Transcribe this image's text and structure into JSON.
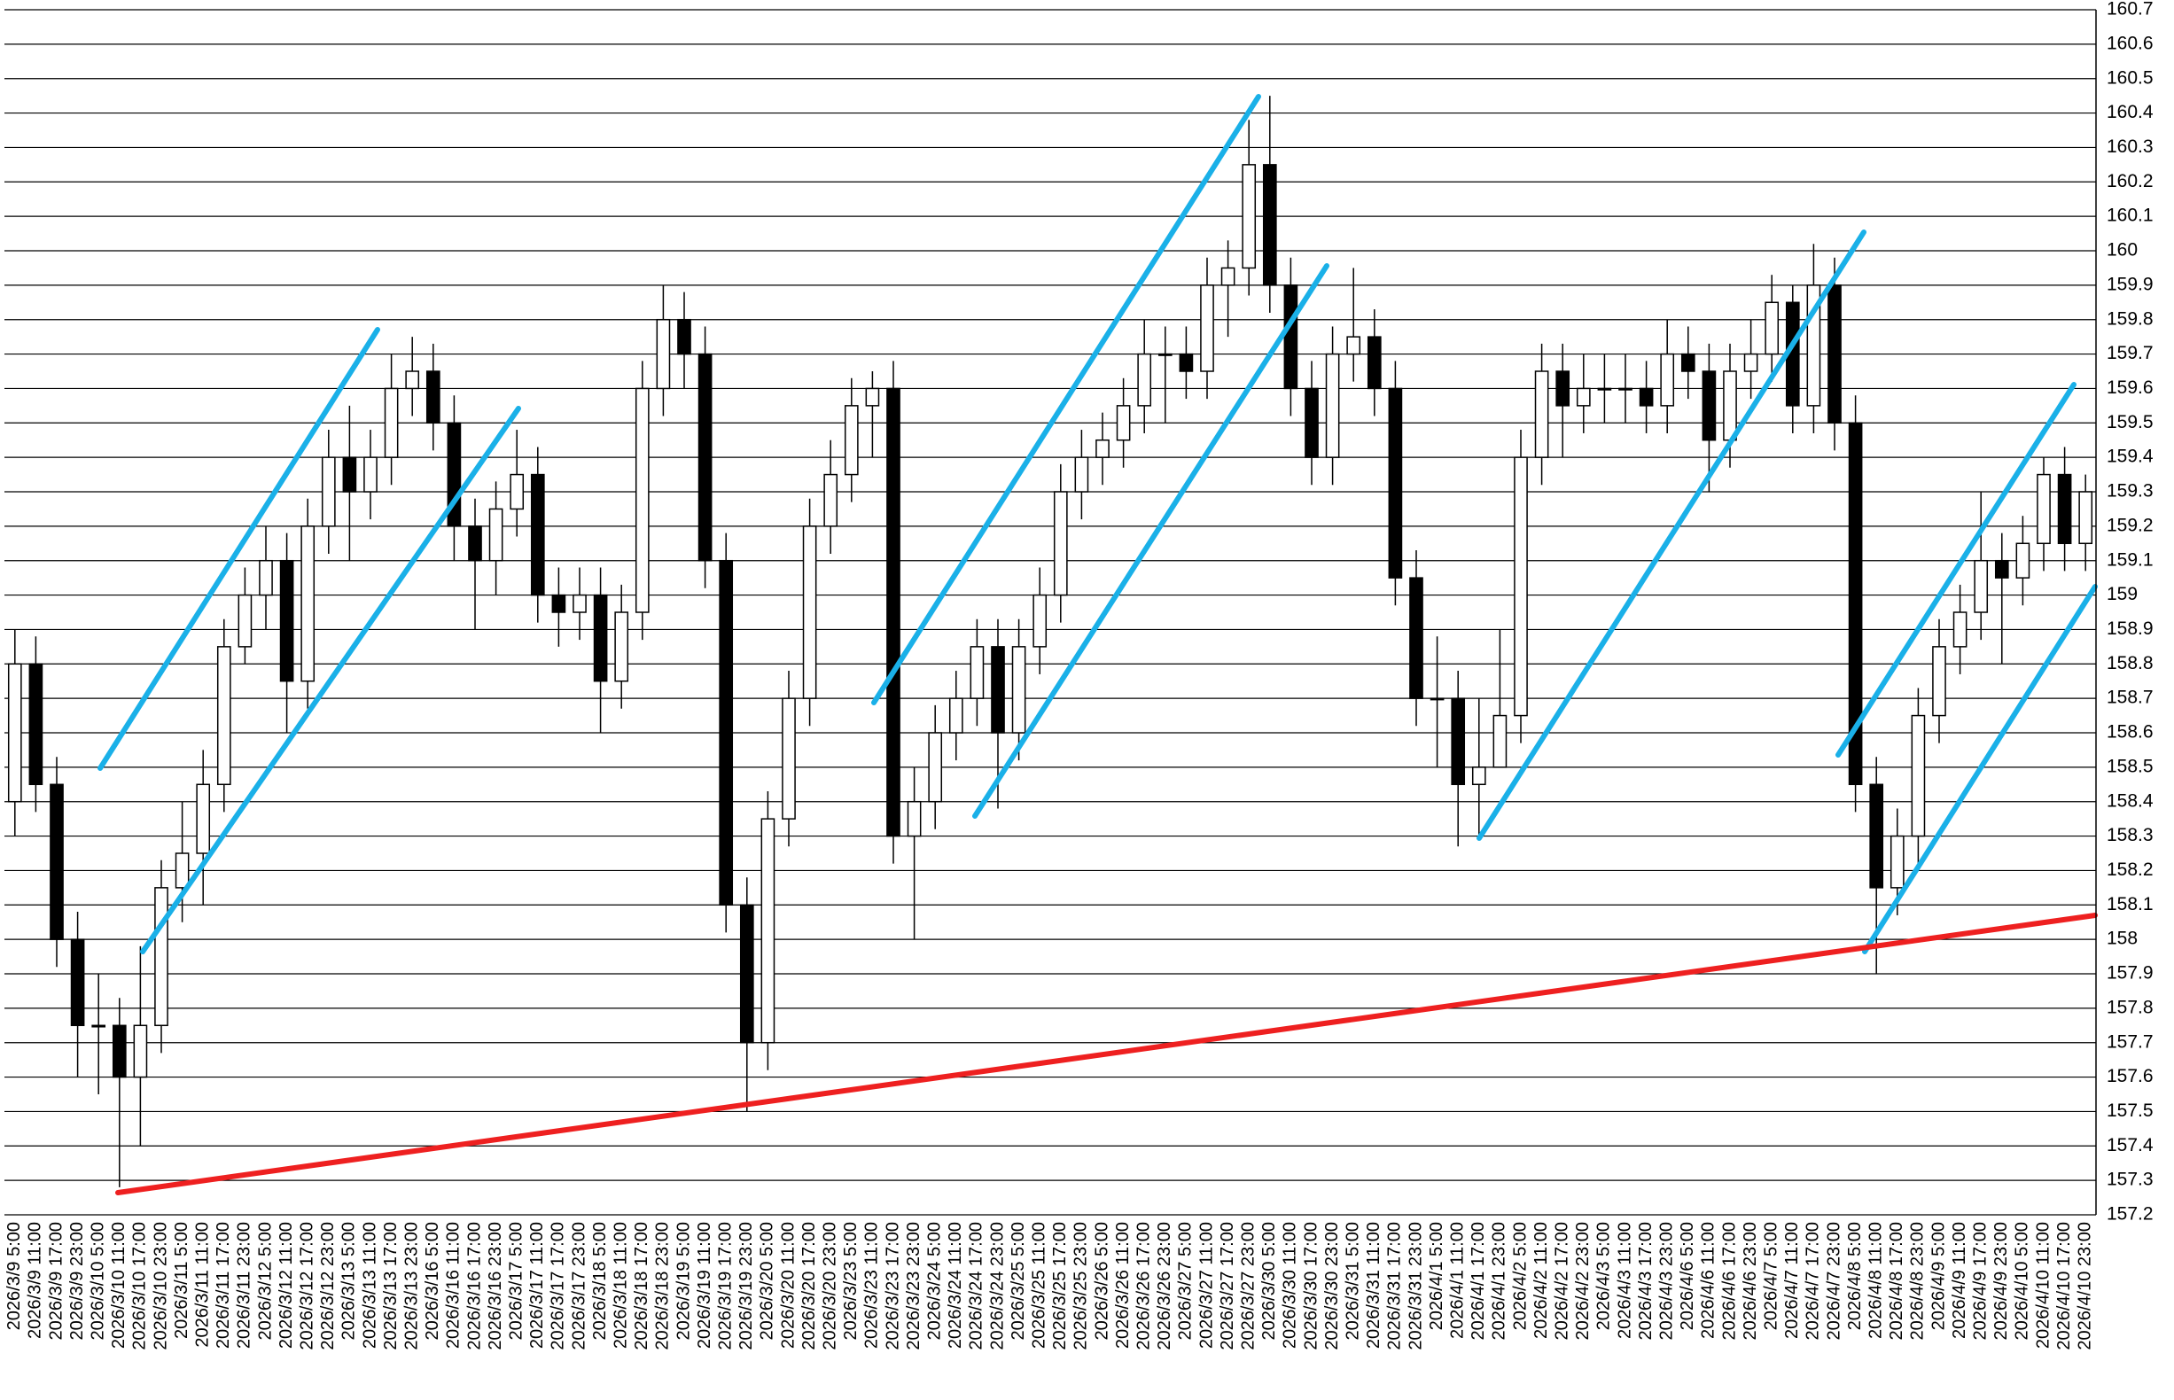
{
  "chart_data": {
    "type": "candlestick",
    "categories": [
      "2026/3/9 5:00",
      "2026/3/9 11:00",
      "2026/3/9 17:00",
      "2026/3/9 23:00",
      "2026/3/10 5:00",
      "2026/3/10 11:00",
      "2026/3/10 17:00",
      "2026/3/10 23:00",
      "2026/3/11 5:00",
      "2026/3/11 11:00",
      "2026/3/11 17:00",
      "2026/3/11 23:00",
      "2026/3/12 5:00",
      "2026/3/12 11:00",
      "2026/3/12 17:00",
      "2026/3/12 23:00",
      "2026/3/13 5:00",
      "2026/3/13 11:00",
      "2026/3/13 17:00",
      "2026/3/13 23:00",
      "2026/3/16 5:00",
      "2026/3/16 11:00",
      "2026/3/16 17:00",
      "2026/3/16 23:00",
      "2026/3/17 5:00",
      "2026/3/17 11:00",
      "2026/3/17 17:00",
      "2026/3/17 23:00",
      "2026/3/18 5:00",
      "2026/3/18 11:00",
      "2026/3/18 17:00",
      "2026/3/18 23:00",
      "2026/3/19 5:00",
      "2026/3/19 11:00",
      "2026/3/19 17:00",
      "2026/3/19 23:00",
      "2026/3/20 5:00",
      "2026/3/20 11:00",
      "2026/3/20 17:00",
      "2026/3/20 23:00",
      "2026/3/23 5:00",
      "2026/3/23 11:00",
      "2026/3/23 17:00",
      "2026/3/23 23:00",
      "2026/3/24 5:00",
      "2026/3/24 11:00",
      "2026/3/24 17:00",
      "2026/3/24 23:00",
      "2026/3/25 5:00",
      "2026/3/25 11:00",
      "2026/3/25 17:00",
      "2026/3/25 23:00",
      "2026/3/26 5:00",
      "2026/3/26 11:00",
      "2026/3/26 17:00",
      "2026/3/26 23:00",
      "2026/3/27 5:00",
      "2026/3/27 11:00",
      "2026/3/27 17:00",
      "2026/3/27 23:00",
      "2026/3/30 5:00",
      "2026/3/30 11:00",
      "2026/3/30 17:00",
      "2026/3/30 23:00",
      "2026/3/31 5:00",
      "2026/3/31 11:00",
      "2026/3/31 17:00",
      "2026/3/31 23:00",
      "2026/4/1 5:00",
      "2026/4/1 11:00",
      "2026/4/1 17:00",
      "2026/4/1 23:00",
      "2026/4/2 5:00",
      "2026/4/2 11:00",
      "2026/4/2 17:00",
      "2026/4/2 23:00",
      "2026/4/3 5:00",
      "2026/4/3 11:00",
      "2026/4/3 17:00",
      "2026/4/3 23:00",
      "2026/4/6 5:00",
      "2026/4/6 11:00",
      "2026/4/6 17:00",
      "2026/4/6 23:00",
      "2026/4/7 5:00",
      "2026/4/7 11:00",
      "2026/4/7 17:00",
      "2026/4/7 23:00",
      "2026/4/8 5:00",
      "2026/4/8 11:00",
      "2026/4/8 17:00",
      "2026/4/8 23:00",
      "2026/4/9 5:00",
      "2026/4/9 11:00",
      "2026/4/9 17:00",
      "2026/4/9 23:00",
      "2026/4/10 5:00",
      "2026/4/10 11:00",
      "2026/4/10 17:00",
      "2026/4/10 23:00"
    ],
    "open": [
      158.4,
      158.8,
      158.45,
      158.0,
      157.75,
      157.75,
      157.6,
      157.75,
      158.15,
      158.25,
      158.45,
      158.85,
      159.0,
      159.1,
      158.75,
      159.2,
      159.4,
      159.3,
      159.4,
      159.6,
      159.65,
      159.5,
      159.2,
      159.1,
      159.25,
      159.35,
      159.0,
      158.95,
      159.0,
      158.75,
      158.95,
      159.6,
      159.8,
      159.7,
      159.1,
      158.1,
      157.7,
      158.35,
      158.7,
      159.2,
      159.35,
      159.55,
      159.6,
      158.3,
      158.4,
      158.6,
      158.7,
      158.85,
      158.6,
      158.85,
      159.0,
      159.3,
      159.4,
      159.45,
      159.55,
      159.7,
      159.7,
      159.65,
      159.9,
      159.95,
      160.25,
      159.9,
      159.6,
      159.4,
      159.7,
      159.75,
      159.6,
      159.05,
      158.7,
      158.7,
      158.45,
      158.5,
      158.65,
      159.4,
      159.65,
      159.55,
      159.6,
      159.6,
      159.6,
      159.55,
      159.7,
      159.65,
      159.45,
      159.65,
      159.7,
      159.85,
      159.55,
      159.9,
      159.5,
      158.45,
      158.15,
      158.3,
      158.65,
      158.85,
      158.95,
      159.1,
      159.05,
      159.15,
      159.35,
      159.15
    ],
    "high": [
      158.9,
      158.88,
      158.53,
      158.08,
      157.9,
      157.83,
      157.98,
      158.23,
      158.4,
      158.55,
      158.93,
      159.08,
      159.2,
      159.18,
      159.28,
      159.48,
      159.55,
      159.48,
      159.7,
      159.75,
      159.73,
      159.58,
      159.28,
      159.33,
      159.48,
      159.43,
      159.08,
      159.08,
      159.08,
      159.03,
      159.68,
      159.9,
      159.88,
      159.78,
      159.18,
      158.18,
      158.43,
      158.78,
      159.28,
      159.45,
      159.63,
      159.65,
      159.68,
      158.5,
      158.68,
      158.78,
      158.93,
      158.93,
      158.93,
      159.08,
      159.38,
      159.48,
      159.53,
      159.63,
      159.8,
      159.78,
      159.78,
      159.98,
      160.03,
      160.38,
      160.45,
      159.98,
      159.68,
      159.78,
      159.95,
      159.83,
      159.68,
      159.13,
      158.88,
      158.78,
      158.7,
      158.9,
      159.48,
      159.73,
      159.73,
      159.7,
      159.7,
      159.7,
      159.68,
      159.8,
      159.78,
      159.73,
      159.73,
      159.8,
      159.93,
      159.9,
      160.02,
      159.98,
      159.58,
      158.53,
      158.38,
      158.73,
      158.93,
      159.03,
      159.3,
      159.18,
      159.23,
      159.4,
      159.43,
      159.35
    ],
    "low": [
      158.3,
      158.37,
      157.92,
      157.6,
      157.55,
      157.28,
      157.4,
      157.67,
      158.05,
      158.1,
      158.37,
      158.8,
      158.9,
      158.6,
      158.67,
      159.12,
      159.1,
      159.22,
      159.32,
      159.52,
      159.42,
      159.1,
      158.9,
      159.0,
      159.17,
      158.92,
      158.85,
      158.87,
      158.6,
      158.67,
      158.87,
      159.52,
      159.6,
      159.02,
      158.02,
      157.5,
      157.62,
      158.27,
      158.62,
      159.12,
      159.27,
      159.4,
      158.22,
      158.0,
      158.32,
      158.52,
      158.62,
      158.38,
      158.52,
      158.77,
      158.92,
      159.22,
      159.32,
      159.37,
      159.47,
      159.5,
      159.57,
      159.57,
      159.75,
      159.87,
      159.82,
      159.52,
      159.32,
      159.32,
      159.62,
      159.52,
      158.97,
      158.62,
      158.5,
      158.27,
      158.3,
      158.5,
      158.57,
      159.32,
      159.4,
      159.47,
      159.5,
      159.5,
      159.47,
      159.47,
      159.57,
      159.3,
      159.37,
      159.57,
      159.62,
      159.47,
      159.47,
      159.42,
      158.37,
      157.9,
      158.07,
      158.22,
      158.57,
      158.77,
      158.87,
      158.8,
      158.97,
      159.07,
      159.07,
      159.07
    ],
    "close": [
      158.8,
      158.45,
      158.0,
      157.75,
      157.75,
      157.6,
      157.75,
      158.15,
      158.25,
      158.45,
      158.85,
      159.0,
      159.1,
      158.75,
      159.2,
      159.4,
      159.3,
      159.4,
      159.6,
      159.65,
      159.5,
      159.2,
      159.1,
      159.25,
      159.35,
      159.0,
      158.95,
      159.0,
      158.75,
      158.95,
      159.6,
      159.8,
      159.7,
      159.1,
      158.1,
      157.7,
      158.35,
      158.7,
      159.2,
      159.35,
      159.55,
      159.6,
      158.3,
      158.4,
      158.6,
      158.7,
      158.85,
      158.6,
      158.85,
      159.0,
      159.3,
      159.4,
      159.45,
      159.55,
      159.7,
      159.7,
      159.65,
      159.9,
      159.95,
      160.25,
      159.9,
      159.6,
      159.4,
      159.7,
      159.75,
      159.6,
      159.05,
      158.7,
      158.7,
      158.45,
      158.5,
      158.65,
      159.4,
      159.65,
      159.55,
      159.6,
      159.6,
      159.6,
      159.55,
      159.7,
      159.65,
      159.45,
      159.65,
      159.7,
      159.85,
      159.55,
      159.9,
      159.5,
      158.45,
      158.15,
      158.3,
      158.65,
      158.85,
      158.95,
      159.1,
      159.05,
      159.15,
      159.35,
      159.15,
      159.3
    ],
    "ylim": [
      157.2,
      160.7
    ],
    "yticks": [
      157.2,
      157.3,
      157.4,
      157.5,
      157.6,
      157.7,
      157.8,
      157.9,
      158,
      158.1,
      158.2,
      158.3,
      158.4,
      158.5,
      158.6,
      158.7,
      158.8,
      158.9,
      159,
      159.1,
      159.2,
      159.3,
      159.4,
      159.5,
      159.6,
      159.7,
      159.8,
      159.9,
      160,
      160.1,
      160.2,
      160.3,
      160.4,
      160.5,
      160.6,
      160.7
    ],
    "grid": true
  }
}
